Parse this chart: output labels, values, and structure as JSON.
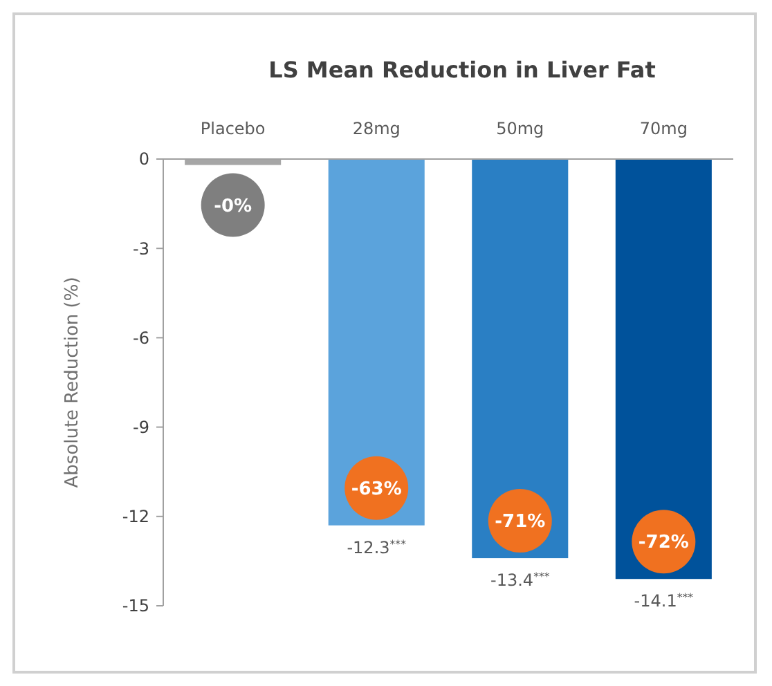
{
  "chart_data": {
    "type": "bar",
    "title": "LS Mean Reduction in Liver Fat",
    "ylabel": "Absolute Reduction (%)",
    "categories": [
      "Placebo",
      "28mg",
      "50mg",
      "70mg"
    ],
    "values": [
      -0.2,
      -12.3,
      -13.4,
      -14.1
    ],
    "colors": [
      "#a6a6a6",
      "#5ba3dc",
      "#2a7fc4",
      "#00529b"
    ],
    "value_labels": [
      null,
      "-12.3$^{***}$",
      "-13.4$^{***}$",
      "-14.1$^{***}$"
    ],
    "ylim": [
      -15,
      0
    ],
    "yticks": [
      -15,
      -12,
      -9,
      -6,
      -3,
      0
    ],
    "grid": false,
    "annotations": [
      "-0%",
      "-63%",
      "-71%",
      "-72%"
    ]
  }
}
